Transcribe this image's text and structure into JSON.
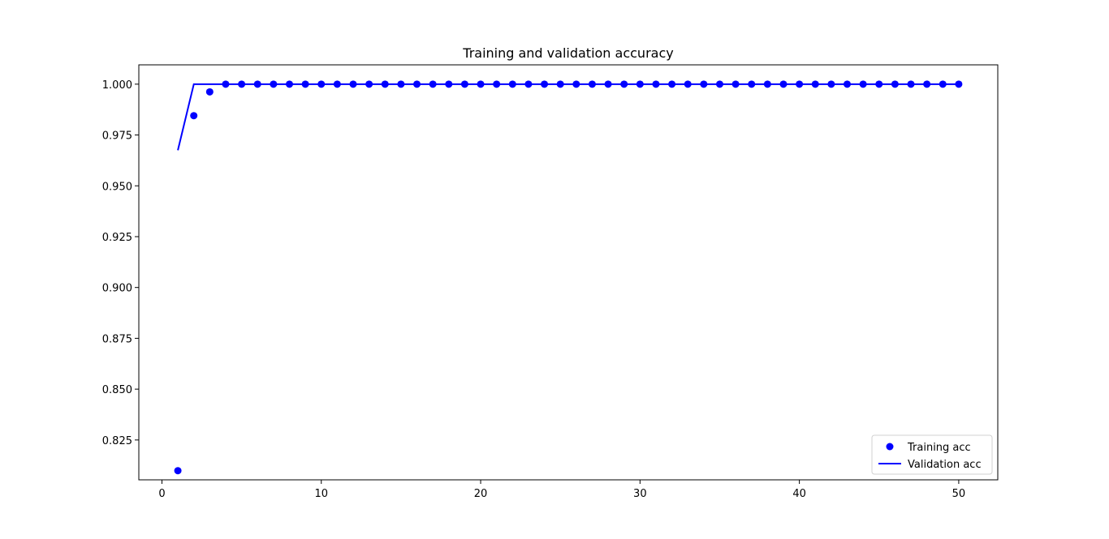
{
  "chart_data": {
    "type": "scatter",
    "title": "Training and validation accuracy",
    "xlabel": "",
    "ylabel": "",
    "xlim": [
      -1.45,
      52.45
    ],
    "ylim": [
      0.8054,
      1.0095
    ],
    "xticks": [
      0,
      10,
      20,
      30,
      40,
      50
    ],
    "xtick_labels": [
      "0",
      "10",
      "20",
      "30",
      "40",
      "50"
    ],
    "yticks": [
      0.825,
      0.85,
      0.875,
      0.9,
      0.925,
      0.95,
      0.975,
      1.0
    ],
    "ytick_labels": [
      "0.825",
      "0.850",
      "0.875",
      "0.900",
      "0.925",
      "0.950",
      "0.975",
      "1.000"
    ],
    "grid": false,
    "legend_position": "lower right",
    "series": [
      {
        "name": "Training acc",
        "style": "markers",
        "color": "#0000ff",
        "x": [
          1,
          2,
          3,
          4,
          5,
          6,
          7,
          8,
          9,
          10,
          11,
          12,
          13,
          14,
          15,
          16,
          17,
          18,
          19,
          20,
          21,
          22,
          23,
          24,
          25,
          26,
          27,
          28,
          29,
          30,
          31,
          32,
          33,
          34,
          35,
          36,
          37,
          38,
          39,
          40,
          41,
          42,
          43,
          44,
          45,
          46,
          47,
          48,
          49,
          50
        ],
        "y": [
          0.8099,
          0.9845,
          0.9962,
          1.0,
          1.0,
          1.0,
          1.0,
          1.0,
          1.0,
          1.0,
          1.0,
          1.0,
          1.0,
          1.0,
          1.0,
          1.0,
          1.0,
          1.0,
          1.0,
          1.0,
          1.0,
          1.0,
          1.0,
          1.0,
          1.0,
          1.0,
          1.0,
          1.0,
          1.0,
          1.0,
          1.0,
          1.0,
          1.0,
          1.0,
          1.0,
          1.0,
          1.0,
          1.0,
          1.0,
          1.0,
          1.0,
          1.0,
          1.0,
          1.0,
          1.0,
          1.0,
          1.0,
          1.0,
          1.0,
          1.0
        ]
      },
      {
        "name": "Validation acc",
        "style": "line",
        "color": "#0000ff",
        "x": [
          1,
          2,
          3,
          4,
          5,
          6,
          7,
          8,
          9,
          10,
          11,
          12,
          13,
          14,
          15,
          16,
          17,
          18,
          19,
          20,
          21,
          22,
          23,
          24,
          25,
          26,
          27,
          28,
          29,
          30,
          31,
          32,
          33,
          34,
          35,
          36,
          37,
          38,
          39,
          40,
          41,
          42,
          43,
          44,
          45,
          46,
          47,
          48,
          49,
          50
        ],
        "y": [
          0.9675,
          1.0,
          1.0,
          1.0,
          1.0,
          1.0,
          1.0,
          1.0,
          1.0,
          1.0,
          1.0,
          1.0,
          1.0,
          1.0,
          1.0,
          1.0,
          1.0,
          1.0,
          1.0,
          1.0,
          1.0,
          1.0,
          1.0,
          1.0,
          1.0,
          1.0,
          1.0,
          1.0,
          1.0,
          1.0,
          1.0,
          1.0,
          1.0,
          1.0,
          1.0,
          1.0,
          1.0,
          1.0,
          1.0,
          1.0,
          1.0,
          1.0,
          1.0,
          1.0,
          1.0,
          1.0,
          1.0,
          1.0,
          1.0,
          1.0
        ]
      }
    ]
  }
}
